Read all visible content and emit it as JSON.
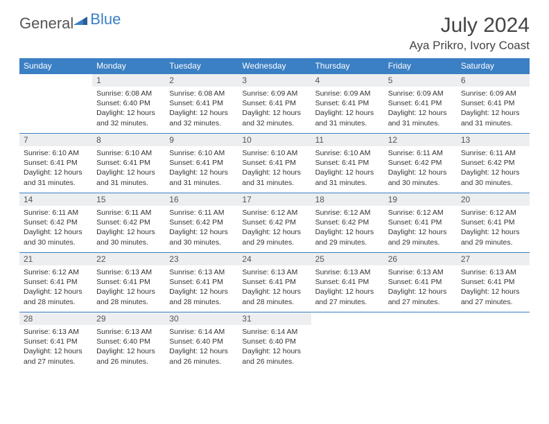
{
  "logo": {
    "general": "General",
    "blue": "Blue"
  },
  "title": "July 2024",
  "location": "Aya Prikro, Ivory Coast",
  "weekdays": [
    "Sunday",
    "Monday",
    "Tuesday",
    "Wednesday",
    "Thursday",
    "Friday",
    "Saturday"
  ],
  "colors": {
    "header_bg": "#3b7fc4",
    "header_text": "#ffffff",
    "daynum_bg": "#eceef0",
    "border": "#3b7fc4",
    "text": "#333333"
  },
  "fonts": {
    "title_size": 30,
    "location_size": 17,
    "weekday_size": 12,
    "daynum_size": 12,
    "body_size": 10.5
  },
  "weeks": [
    [
      {
        "day": "",
        "sunrise": "",
        "sunset": "",
        "daylight": ""
      },
      {
        "day": "1",
        "sunrise": "Sunrise: 6:08 AM",
        "sunset": "Sunset: 6:40 PM",
        "daylight": "Daylight: 12 hours and 32 minutes."
      },
      {
        "day": "2",
        "sunrise": "Sunrise: 6:08 AM",
        "sunset": "Sunset: 6:41 PM",
        "daylight": "Daylight: 12 hours and 32 minutes."
      },
      {
        "day": "3",
        "sunrise": "Sunrise: 6:09 AM",
        "sunset": "Sunset: 6:41 PM",
        "daylight": "Daylight: 12 hours and 32 minutes."
      },
      {
        "day": "4",
        "sunrise": "Sunrise: 6:09 AM",
        "sunset": "Sunset: 6:41 PM",
        "daylight": "Daylight: 12 hours and 31 minutes."
      },
      {
        "day": "5",
        "sunrise": "Sunrise: 6:09 AM",
        "sunset": "Sunset: 6:41 PM",
        "daylight": "Daylight: 12 hours and 31 minutes."
      },
      {
        "day": "6",
        "sunrise": "Sunrise: 6:09 AM",
        "sunset": "Sunset: 6:41 PM",
        "daylight": "Daylight: 12 hours and 31 minutes."
      }
    ],
    [
      {
        "day": "7",
        "sunrise": "Sunrise: 6:10 AM",
        "sunset": "Sunset: 6:41 PM",
        "daylight": "Daylight: 12 hours and 31 minutes."
      },
      {
        "day": "8",
        "sunrise": "Sunrise: 6:10 AM",
        "sunset": "Sunset: 6:41 PM",
        "daylight": "Daylight: 12 hours and 31 minutes."
      },
      {
        "day": "9",
        "sunrise": "Sunrise: 6:10 AM",
        "sunset": "Sunset: 6:41 PM",
        "daylight": "Daylight: 12 hours and 31 minutes."
      },
      {
        "day": "10",
        "sunrise": "Sunrise: 6:10 AM",
        "sunset": "Sunset: 6:41 PM",
        "daylight": "Daylight: 12 hours and 31 minutes."
      },
      {
        "day": "11",
        "sunrise": "Sunrise: 6:10 AM",
        "sunset": "Sunset: 6:41 PM",
        "daylight": "Daylight: 12 hours and 31 minutes."
      },
      {
        "day": "12",
        "sunrise": "Sunrise: 6:11 AM",
        "sunset": "Sunset: 6:42 PM",
        "daylight": "Daylight: 12 hours and 30 minutes."
      },
      {
        "day": "13",
        "sunrise": "Sunrise: 6:11 AM",
        "sunset": "Sunset: 6:42 PM",
        "daylight": "Daylight: 12 hours and 30 minutes."
      }
    ],
    [
      {
        "day": "14",
        "sunrise": "Sunrise: 6:11 AM",
        "sunset": "Sunset: 6:42 PM",
        "daylight": "Daylight: 12 hours and 30 minutes."
      },
      {
        "day": "15",
        "sunrise": "Sunrise: 6:11 AM",
        "sunset": "Sunset: 6:42 PM",
        "daylight": "Daylight: 12 hours and 30 minutes."
      },
      {
        "day": "16",
        "sunrise": "Sunrise: 6:11 AM",
        "sunset": "Sunset: 6:42 PM",
        "daylight": "Daylight: 12 hours and 30 minutes."
      },
      {
        "day": "17",
        "sunrise": "Sunrise: 6:12 AM",
        "sunset": "Sunset: 6:42 PM",
        "daylight": "Daylight: 12 hours and 29 minutes."
      },
      {
        "day": "18",
        "sunrise": "Sunrise: 6:12 AM",
        "sunset": "Sunset: 6:42 PM",
        "daylight": "Daylight: 12 hours and 29 minutes."
      },
      {
        "day": "19",
        "sunrise": "Sunrise: 6:12 AM",
        "sunset": "Sunset: 6:41 PM",
        "daylight": "Daylight: 12 hours and 29 minutes."
      },
      {
        "day": "20",
        "sunrise": "Sunrise: 6:12 AM",
        "sunset": "Sunset: 6:41 PM",
        "daylight": "Daylight: 12 hours and 29 minutes."
      }
    ],
    [
      {
        "day": "21",
        "sunrise": "Sunrise: 6:12 AM",
        "sunset": "Sunset: 6:41 PM",
        "daylight": "Daylight: 12 hours and 28 minutes."
      },
      {
        "day": "22",
        "sunrise": "Sunrise: 6:13 AM",
        "sunset": "Sunset: 6:41 PM",
        "daylight": "Daylight: 12 hours and 28 minutes."
      },
      {
        "day": "23",
        "sunrise": "Sunrise: 6:13 AM",
        "sunset": "Sunset: 6:41 PM",
        "daylight": "Daylight: 12 hours and 28 minutes."
      },
      {
        "day": "24",
        "sunrise": "Sunrise: 6:13 AM",
        "sunset": "Sunset: 6:41 PM",
        "daylight": "Daylight: 12 hours and 28 minutes."
      },
      {
        "day": "25",
        "sunrise": "Sunrise: 6:13 AM",
        "sunset": "Sunset: 6:41 PM",
        "daylight": "Daylight: 12 hours and 27 minutes."
      },
      {
        "day": "26",
        "sunrise": "Sunrise: 6:13 AM",
        "sunset": "Sunset: 6:41 PM",
        "daylight": "Daylight: 12 hours and 27 minutes."
      },
      {
        "day": "27",
        "sunrise": "Sunrise: 6:13 AM",
        "sunset": "Sunset: 6:41 PM",
        "daylight": "Daylight: 12 hours and 27 minutes."
      }
    ],
    [
      {
        "day": "28",
        "sunrise": "Sunrise: 6:13 AM",
        "sunset": "Sunset: 6:41 PM",
        "daylight": "Daylight: 12 hours and 27 minutes."
      },
      {
        "day": "29",
        "sunrise": "Sunrise: 6:13 AM",
        "sunset": "Sunset: 6:40 PM",
        "daylight": "Daylight: 12 hours and 26 minutes."
      },
      {
        "day": "30",
        "sunrise": "Sunrise: 6:14 AM",
        "sunset": "Sunset: 6:40 PM",
        "daylight": "Daylight: 12 hours and 26 minutes."
      },
      {
        "day": "31",
        "sunrise": "Sunrise: 6:14 AM",
        "sunset": "Sunset: 6:40 PM",
        "daylight": "Daylight: 12 hours and 26 minutes."
      },
      {
        "day": "",
        "sunrise": "",
        "sunset": "",
        "daylight": ""
      },
      {
        "day": "",
        "sunrise": "",
        "sunset": "",
        "daylight": ""
      },
      {
        "day": "",
        "sunrise": "",
        "sunset": "",
        "daylight": ""
      }
    ]
  ]
}
